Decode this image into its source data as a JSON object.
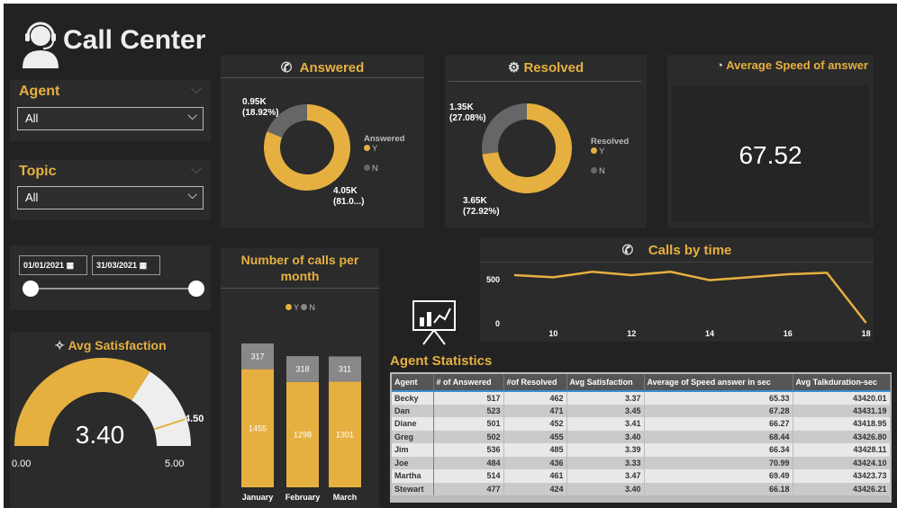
{
  "header": {
    "title": "Call Center",
    "icon": "headset-agent-icon"
  },
  "filters": {
    "agent": {
      "label": "Agent",
      "value": "All"
    },
    "topic": {
      "label": "Topic",
      "value": "All"
    },
    "date": {
      "start": "01/01/2021",
      "end": "31/03/2021"
    }
  },
  "colors": {
    "accent": "#e6b040",
    "secondary": "#666666",
    "panel": "#2b2b2b"
  },
  "answered": {
    "title": "Answered",
    "legend_title": "Answered",
    "legend": [
      "Y",
      "N"
    ],
    "y_label": "4.05K",
    "y_pct": "(81.0...)",
    "n_label": "0.95K",
    "n_pct": "(18.92%)",
    "y_share": 81.08,
    "n_share": 18.92
  },
  "resolved": {
    "title": "Resolved",
    "legend_title": "Resolved",
    "legend": [
      "Y",
      "N"
    ],
    "y_label": "3.65K",
    "y_pct": "(72.92%)",
    "n_label": "1.35K",
    "n_pct": "(27.08%)",
    "y_share": 72.92,
    "n_share": 27.08
  },
  "speed": {
    "title": "Average Speed of answer",
    "value": "67.52"
  },
  "satisfaction": {
    "title": "Avg Satisfaction",
    "value": "3.40",
    "min": "0.00",
    "max": "5.00",
    "target": "4.50"
  },
  "chart_data": [
    {
      "type": "bar",
      "title": "Number of calls per month",
      "categories": [
        "January",
        "February",
        "March"
      ],
      "legend": [
        "Y",
        "N"
      ],
      "series": [
        {
          "name": "Y",
          "values": [
            1455,
            1298,
            1301
          ]
        },
        {
          "name": "N",
          "values": [
            317,
            318,
            311
          ]
        }
      ]
    },
    {
      "type": "line",
      "title": "Calls by time",
      "x": [
        9,
        10,
        11,
        12,
        13,
        14,
        15,
        16,
        17,
        18
      ],
      "values": [
        551,
        527,
        589,
        551,
        589,
        494,
        527,
        561,
        578,
        10
      ],
      "xticks": [
        "10",
        "12",
        "14",
        "16",
        "18"
      ],
      "yticks": [
        "0",
        "500"
      ],
      "ylim": [
        0,
        600
      ]
    }
  ],
  "table": {
    "title": "Agent Statistics",
    "columns": [
      "Agent",
      "# of Answered",
      "#of Resolved",
      "Avg Satisfaction",
      "Average of Speed answer in sec",
      "Avg Talkduration-sec"
    ],
    "rows": [
      [
        "Becky",
        "517",
        "462",
        "3.37",
        "65.33",
        "43420.01"
      ],
      [
        "Dan",
        "523",
        "471",
        "3.45",
        "67.28",
        "43431.19"
      ],
      [
        "Diane",
        "501",
        "452",
        "3.41",
        "66.27",
        "43418.95"
      ],
      [
        "Greg",
        "502",
        "455",
        "3.40",
        "68.44",
        "43426.80"
      ],
      [
        "Jim",
        "536",
        "485",
        "3.39",
        "66.34",
        "43428.11"
      ],
      [
        "Joe",
        "484",
        "436",
        "3.33",
        "70.99",
        "43424.10"
      ],
      [
        "Martha",
        "514",
        "461",
        "3.47",
        "69.49",
        "43423.73"
      ],
      [
        "Stewart",
        "477",
        "424",
        "3.40",
        "66.18",
        "43426.21"
      ]
    ]
  }
}
